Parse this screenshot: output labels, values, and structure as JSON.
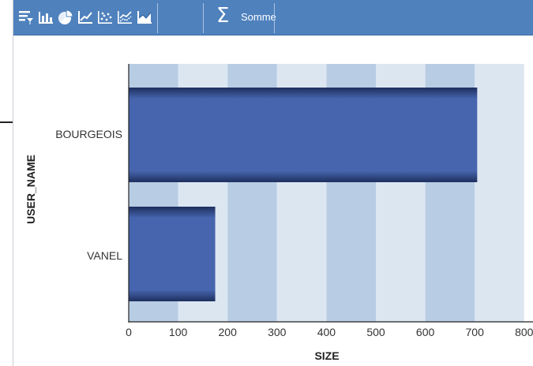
{
  "toolbar": {
    "background": "#4f81bd",
    "buttons": [
      {
        "icon": "table-filter-icon"
      },
      {
        "icon": "bar-chart-icon"
      },
      {
        "icon": "pie-chart-icon"
      },
      {
        "icon": "line-chart-icon"
      },
      {
        "icon": "scatter-chart-icon"
      },
      {
        "icon": "multi-line-chart-icon"
      },
      {
        "icon": "area-chart-icon"
      }
    ],
    "aggregate_icon": "sum-icon",
    "aggregate_symbol": "Σ",
    "aggregate_label": "Somme"
  },
  "chart_data": {
    "type": "bar",
    "orientation": "horizontal",
    "categories": [
      "BOURGEOIS",
      "VANEL"
    ],
    "values": [
      705,
      175
    ],
    "xlabel": "SIZE",
    "ylabel": "USER_NAME",
    "xlim": [
      0,
      800
    ],
    "xticks": [
      "0",
      "100",
      "200",
      "300",
      "400",
      "500",
      "600",
      "700",
      "800"
    ],
    "bar_color": "#4665ae",
    "band_colors": [
      "#b8cce4",
      "#dce6f1"
    ],
    "legend": "none"
  }
}
